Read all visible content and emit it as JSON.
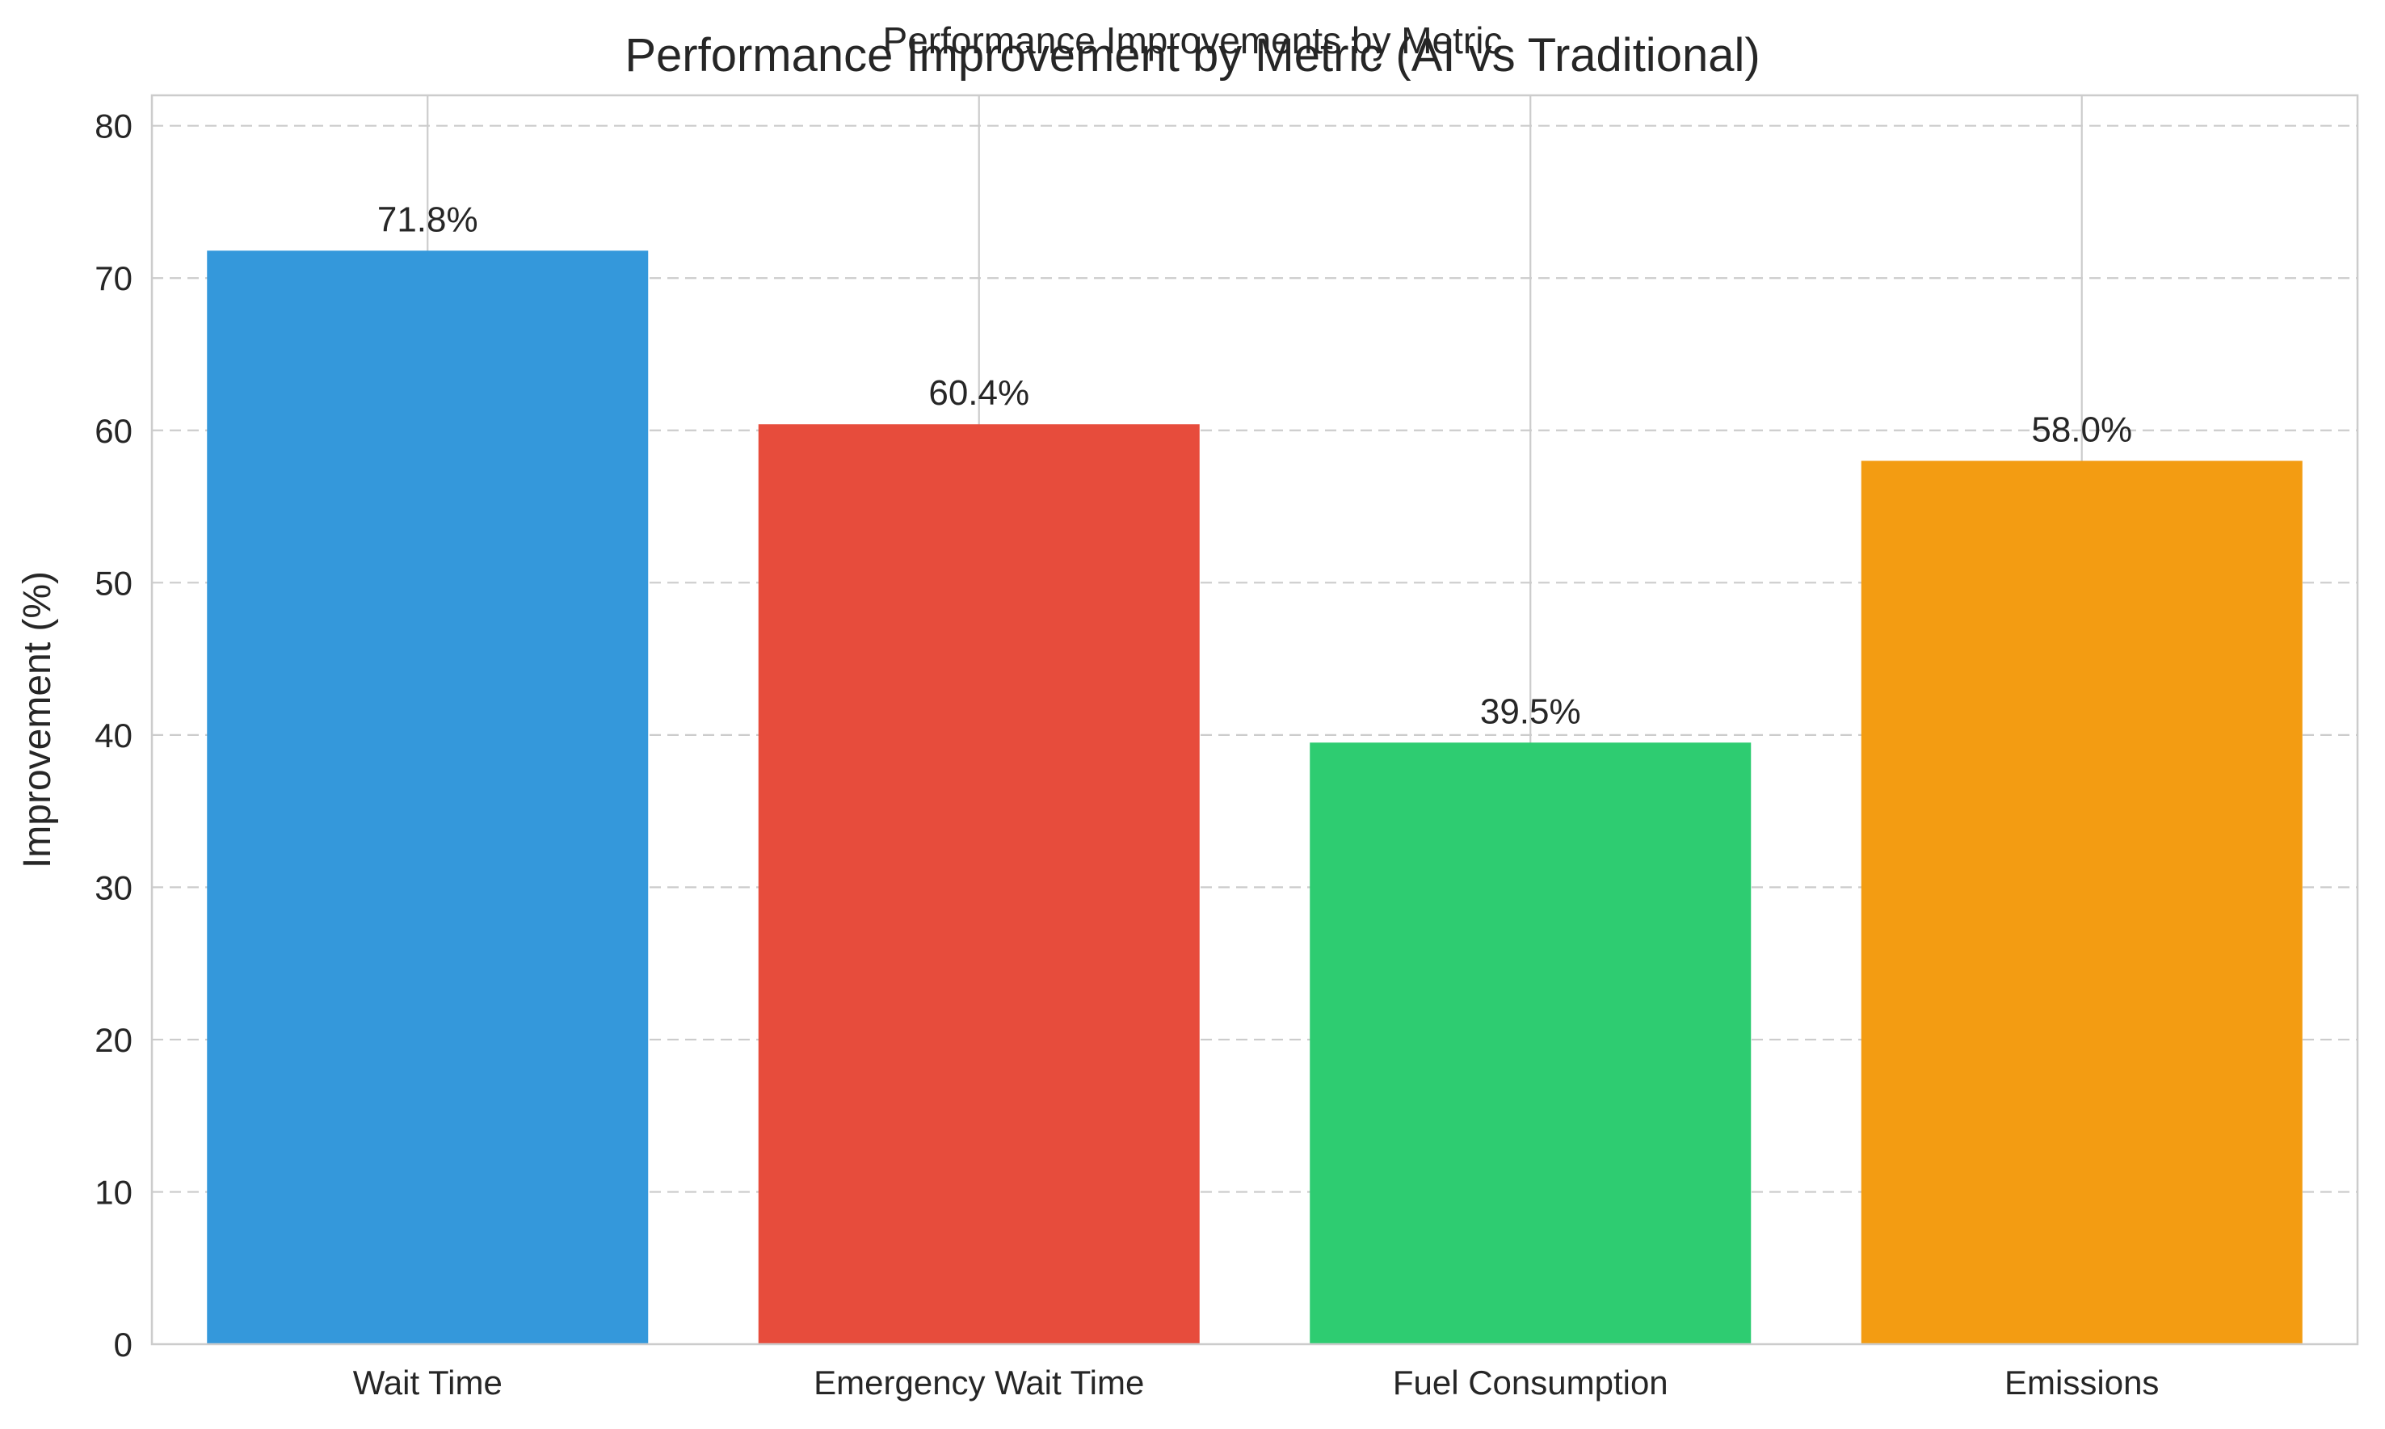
{
  "chart_data": {
    "type": "bar",
    "suptitle": "Performance Improvements by Metric",
    "title": "Performance Improvement by Metric (AI vs Traditional)",
    "xlabel": "",
    "ylabel": "Improvement (%)",
    "categories": [
      "Wait Time",
      "Emergency Wait Time",
      "Fuel Consumption",
      "Emissions"
    ],
    "values": [
      71.8,
      60.4,
      39.5,
      58.0
    ],
    "value_labels": [
      "71.8%",
      "60.4%",
      "39.5%",
      "58.0%"
    ],
    "colors": [
      "#3498db",
      "#e74c3c",
      "#2ecc71",
      "#f39c12"
    ],
    "yticks": [
      "0",
      "10",
      "20",
      "30",
      "40",
      "50",
      "60",
      "70",
      "80"
    ],
    "ylim": [
      0,
      82
    ],
    "grid": true,
    "grid_style": "dashed-horizontal",
    "legend": "none"
  }
}
